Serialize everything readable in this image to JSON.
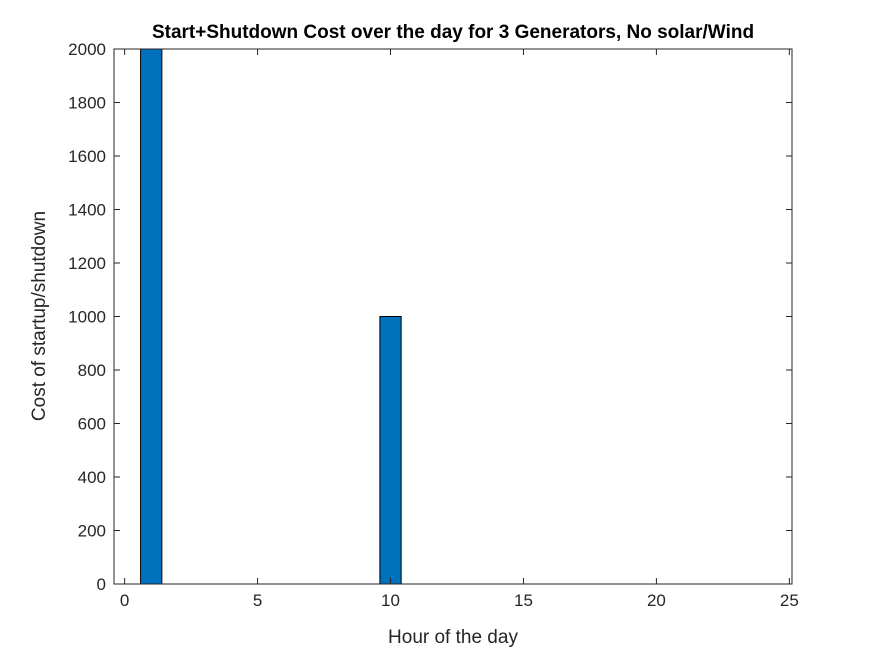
{
  "chart_data": {
    "type": "bar",
    "title": "Start+Shutdown Cost over the day for 3 Generators, No solar/Wind",
    "xlabel": "Hour of the day",
    "ylabel": "Cost of startup/shutdown",
    "x": [
      1,
      10
    ],
    "values": [
      2000,
      1000
    ],
    "bar_width": 0.8,
    "xlim": [
      -0.4,
      25.1
    ],
    "ylim": [
      0,
      2000
    ],
    "xticks": [
      0,
      5,
      10,
      15,
      20,
      25
    ],
    "yticks": [
      0,
      200,
      400,
      600,
      800,
      1000,
      1200,
      1400,
      1600,
      1800,
      2000
    ],
    "bar_color": "#0072BD",
    "grid": false,
    "legend": "none"
  }
}
